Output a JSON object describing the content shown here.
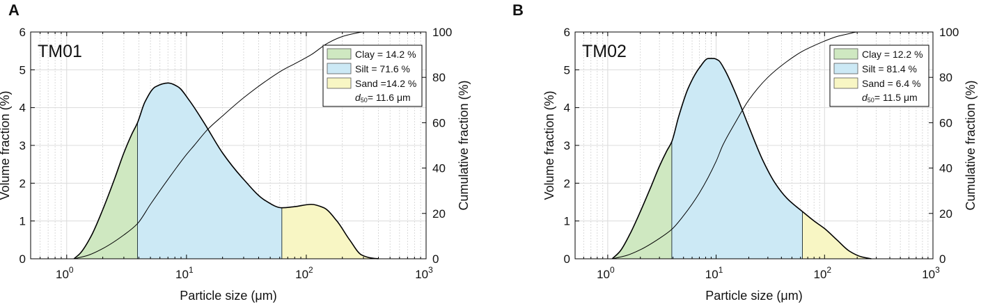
{
  "figure": {
    "clay_color": "#cfe8c1",
    "silt_color": "#cce9f5",
    "sand_color": "#f8f6c4",
    "line_color": "#000000"
  },
  "chart_data": [
    {
      "panel_label": "A",
      "type": "area",
      "sample": "TM01",
      "xscale": "log",
      "xlim": [
        0.5,
        1000
      ],
      "ylim": [
        0,
        6
      ],
      "y2lim": [
        0,
        100
      ],
      "xlabel": "Particle size (μm)",
      "ylabel": "Volume fraction (%)",
      "y2label": "Cumulative fraction (%)",
      "xticks": [
        {
          "base": "10",
          "exp": "0",
          "value": 1
        },
        {
          "base": "10",
          "exp": "1",
          "value": 10
        },
        {
          "base": "10",
          "exp": "2",
          "value": 100
        },
        {
          "base": "10",
          "exp": "3",
          "value": 1000
        }
      ],
      "yticks": [
        "0",
        "1",
        "2",
        "3",
        "4",
        "5",
        "6"
      ],
      "y2ticks": [
        "0",
        "20",
        "40",
        "60",
        "80",
        "100"
      ],
      "boundaries": [
        3.9,
        62.5
      ],
      "legend": {
        "clay": "Clay =  14.2 %",
        "silt": "Silt =    71.6 %",
        "sand": "Sand =14.2 %",
        "d50_symbol": "d",
        "d50_sub": "50",
        "d50_value": "= 11.6 μm"
      },
      "volume_fraction": {
        "x": [
          1.15,
          1.3,
          1.6,
          2.0,
          2.5,
          3.0,
          3.5,
          3.9,
          4.5,
          5.5,
          7.0,
          8.5,
          10.5,
          14,
          20,
          30,
          45,
          62.5,
          80,
          110,
          140,
          180,
          230,
          290,
          350,
          400
        ],
        "y": [
          0,
          0.15,
          0.6,
          1.3,
          2.1,
          2.8,
          3.3,
          3.6,
          4.15,
          4.55,
          4.65,
          4.55,
          4.2,
          3.6,
          2.8,
          2.1,
          1.55,
          1.35,
          1.38,
          1.44,
          1.35,
          1.0,
          0.5,
          0.1,
          0.02,
          0
        ]
      },
      "cumulative": {
        "x": [
          1.15,
          1.5,
          2,
          3,
          3.9,
          5,
          7,
          10,
          11.6,
          15,
          20,
          30,
          45,
          62.5,
          80,
          110,
          150,
          200,
          250,
          300,
          400,
          1000
        ],
        "y": [
          0,
          1.5,
          4.5,
          10.5,
          15.5,
          24,
          35,
          46,
          50,
          57,
          63,
          71,
          78,
          83,
          86,
          90,
          95,
          98,
          99.3,
          100,
          100,
          100
        ]
      }
    },
    {
      "panel_label": "B",
      "type": "area",
      "sample": "TM02",
      "xscale": "log",
      "xlim": [
        0.5,
        1000
      ],
      "ylim": [
        0,
        6
      ],
      "y2lim": [
        0,
        100
      ],
      "xlabel": "Particle size (μm)",
      "ylabel": "Volume fraction (%)",
      "y2label": "Cumulative fraction (%)",
      "xticks": [
        {
          "base": "10",
          "exp": "0",
          "value": 1
        },
        {
          "base": "10",
          "exp": "1",
          "value": 10
        },
        {
          "base": "10",
          "exp": "2",
          "value": 100
        },
        {
          "base": "10",
          "exp": "3",
          "value": 1000
        }
      ],
      "yticks": [
        "0",
        "1",
        "2",
        "3",
        "4",
        "5",
        "6"
      ],
      "y2ticks": [
        "0",
        "20",
        "40",
        "60",
        "80",
        "100"
      ],
      "boundaries": [
        3.9,
        62.5
      ],
      "legend": {
        "clay": "Clay = 12.2 %",
        "silt": "Silt =   81.4 %",
        "sand": "Sand = 6.4 %",
        "d50_symbol": "d",
        "d50_sub": "50",
        "d50_value": "= 11.5 μm"
      },
      "volume_fraction": {
        "x": [
          1.1,
          1.3,
          1.6,
          2.0,
          2.5,
          3.0,
          3.5,
          3.9,
          4.5,
          5.5,
          7.0,
          8.5,
          9.5,
          10.5,
          12,
          15,
          20,
          27,
          35,
          45,
          62.5,
          80,
          100,
          130,
          170,
          220,
          270
        ],
        "y": [
          0,
          0.2,
          0.65,
          1.25,
          1.9,
          2.45,
          2.85,
          3.1,
          3.75,
          4.5,
          5.05,
          5.3,
          5.3,
          5.25,
          5.0,
          4.4,
          3.5,
          2.6,
          2.0,
          1.6,
          1.25,
          1.0,
          0.8,
          0.5,
          0.2,
          0.05,
          0
        ]
      },
      "cumulative": {
        "x": [
          1.1,
          1.5,
          2,
          3,
          3.9,
          5,
          7,
          10,
          11.5,
          15,
          20,
          30,
          45,
          62.5,
          80,
          100,
          130,
          170,
          200,
          300,
          1000
        ],
        "y": [
          0,
          1.5,
          4,
          9,
          13,
          19,
          29,
          43,
          50,
          60,
          70,
          80,
          87,
          91.5,
          94,
          96,
          98,
          99.3,
          100,
          100,
          100
        ]
      }
    }
  ]
}
